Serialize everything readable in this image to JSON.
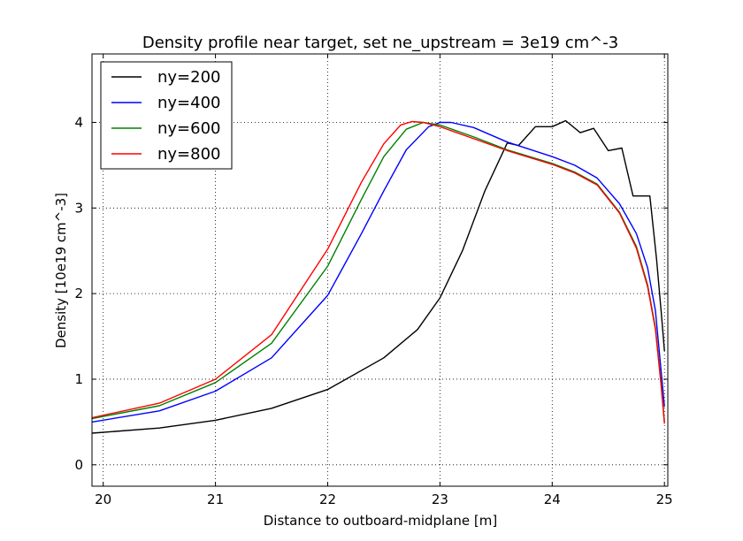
{
  "chart_data": {
    "type": "line",
    "title": "Density profile near target, set ne_upstream = 3e19 cm^-3",
    "xlabel": "Distance to outboard-midplane [m]",
    "ylabel": "Density [10e19 cm^-3]",
    "xlim": [
      19.9,
      25.03
    ],
    "ylim": [
      -0.25,
      4.8
    ],
    "xticks": [
      "20",
      "21",
      "22",
      "23",
      "24",
      "25"
    ],
    "yticks": [
      "0",
      "1",
      "2",
      "3",
      "4"
    ],
    "grid": true,
    "legend_position": "upper-left",
    "series": [
      {
        "name": "ny=200",
        "color": "#000000",
        "x": [
          19.9,
          20.5,
          21.0,
          21.5,
          22.0,
          22.5,
          22.8,
          23.0,
          23.2,
          23.4,
          23.6,
          23.7,
          23.85,
          24.0,
          24.12,
          24.25,
          24.37,
          24.5,
          24.62,
          24.72,
          24.78,
          24.87,
          24.93,
          24.97,
          25.0
        ],
        "y": [
          0.37,
          0.43,
          0.52,
          0.66,
          0.88,
          1.25,
          1.58,
          1.95,
          2.5,
          3.2,
          3.76,
          3.73,
          3.95,
          3.95,
          4.02,
          3.88,
          3.93,
          3.67,
          3.7,
          3.14,
          3.14,
          3.14,
          2.4,
          1.8,
          1.33
        ]
      },
      {
        "name": "ny=400",
        "color": "#0000ff",
        "x": [
          19.9,
          20.5,
          21.0,
          21.5,
          22.0,
          22.3,
          22.5,
          22.7,
          22.9,
          23.0,
          23.1,
          23.3,
          23.6,
          24.0,
          24.2,
          24.4,
          24.6,
          24.75,
          24.85,
          24.92,
          24.97,
          25.0
        ],
        "y": [
          0.5,
          0.63,
          0.86,
          1.25,
          1.98,
          2.7,
          3.2,
          3.68,
          3.95,
          4.0,
          4.0,
          3.94,
          3.77,
          3.6,
          3.5,
          3.35,
          3.05,
          2.7,
          2.3,
          1.8,
          1.1,
          0.68
        ]
      },
      {
        "name": "ny=600",
        "color": "#008000",
        "x": [
          19.9,
          20.5,
          21.0,
          21.5,
          22.0,
          22.3,
          22.5,
          22.7,
          22.85,
          23.0,
          23.3,
          23.6,
          24.0,
          24.2,
          24.4,
          24.6,
          24.75,
          24.85,
          24.92,
          24.97,
          25.0
        ],
        "y": [
          0.54,
          0.69,
          0.96,
          1.42,
          2.32,
          3.1,
          3.6,
          3.92,
          4.0,
          3.97,
          3.83,
          3.68,
          3.52,
          3.42,
          3.28,
          2.95,
          2.55,
          2.1,
          1.6,
          0.95,
          0.5
        ]
      },
      {
        "name": "ny=800",
        "color": "#ff0000",
        "x": [
          19.9,
          20.5,
          21.0,
          21.5,
          22.0,
          22.3,
          22.5,
          22.65,
          22.75,
          22.85,
          23.0,
          23.3,
          23.6,
          24.0,
          24.2,
          24.4,
          24.6,
          24.75,
          24.85,
          24.92,
          24.97,
          25.0
        ],
        "y": [
          0.55,
          0.72,
          1.0,
          1.52,
          2.52,
          3.3,
          3.75,
          3.97,
          4.01,
          4.0,
          3.95,
          3.81,
          3.67,
          3.51,
          3.41,
          3.27,
          2.94,
          2.53,
          2.08,
          1.58,
          0.93,
          0.48
        ]
      }
    ]
  }
}
